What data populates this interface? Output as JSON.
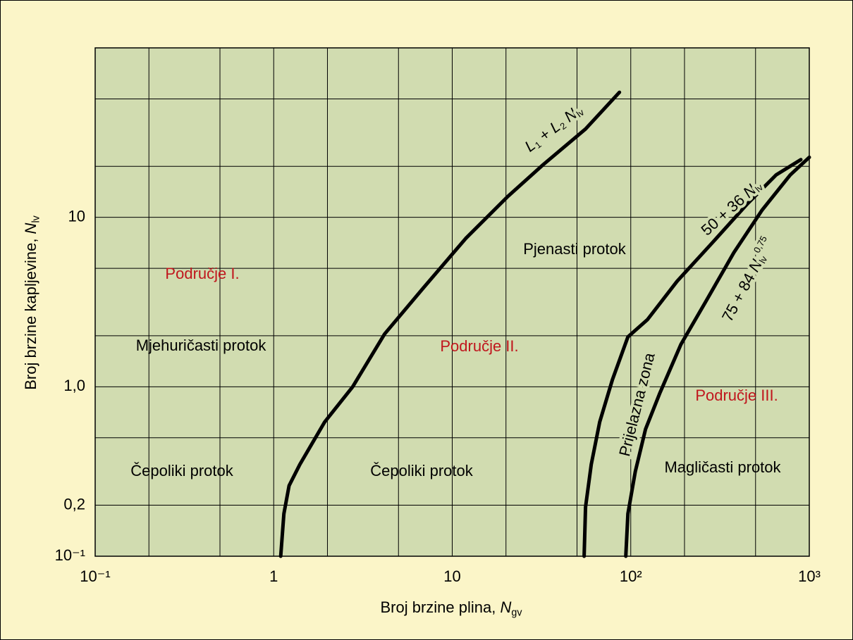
{
  "chart_data": {
    "type": "line",
    "xlabel": [
      {
        "text": "Broj brzine plina,  "
      },
      {
        "italic": "N"
      },
      {
        "sub": "gv"
      }
    ],
    "ylabel": [
      {
        "text": "Broj brzine kapljevine,  "
      },
      {
        "italic": "N"
      },
      {
        "sub": "lv"
      }
    ],
    "xscale": "log",
    "yscale": "log",
    "xlim": [
      0.1,
      1000
    ],
    "ylim": [
      0.1,
      100
    ],
    "xticks": [
      {
        "value": 0.1,
        "label": "10⁻¹"
      },
      1,
      10,
      {
        "value": 100,
        "label": "10²"
      },
      {
        "value": 1000,
        "label": "10³"
      }
    ],
    "yticks": [
      {
        "value": 0.1,
        "label": "10⁻¹"
      },
      {
        "value": 0.2,
        "label": "0,2"
      },
      {
        "value": 1,
        "label": "1,0"
      },
      10
    ],
    "minor_xticks": [
      0.2,
      0.5,
      2,
      5,
      20,
      50,
      200,
      500
    ],
    "minor_yticks": [
      0.5,
      2,
      5,
      20,
      50
    ],
    "grid": true,
    "series": [
      {
        "name": [
          {
            "italic": "L"
          },
          {
            "sub": "1"
          },
          {
            "text": " + "
          },
          {
            "italic": "L"
          },
          {
            "sub": "2"
          },
          {
            "text": " "
          },
          {
            "italic": "N"
          },
          {
            "sub": "lv"
          }
        ],
        "color": "#000000",
        "x": [
          1.095,
          1.14,
          1.22,
          1.4,
          1.93,
          2.77,
          4.18,
          6.89,
          11.9,
          20.5,
          32.4,
          55.8,
          86.4
        ],
        "y": [
          0.1,
          0.178,
          0.261,
          0.348,
          0.62,
          1.0,
          2.05,
          3.83,
          7.5,
          13.3,
          20.5,
          33.2,
          54.7
        ]
      },
      {
        "name": [
          {
            "text": "50 + 36 "
          },
          {
            "italic": "N"
          },
          {
            "sub": "lv"
          }
        ],
        "color": "#000000",
        "x": [
          54.8,
          55.8,
          60.1,
          67.0,
          78.9,
          96.4,
          124,
          182,
          287,
          453,
          652,
          897
        ],
        "y": [
          0.1,
          0.195,
          0.348,
          0.62,
          1.1,
          1.97,
          2.49,
          4.2,
          7.1,
          12.1,
          17.8,
          21.9
        ]
      },
      {
        "name": [
          {
            "text": "75 + 84 "
          },
          {
            "italic": "N"
          },
          {
            "sub": "lv"
          },
          {
            "sup": "0,75"
          }
        ],
        "color": "#000000",
        "x": [
          93.8,
          96.4,
          106,
          121,
          145,
          191,
          262,
          378,
          543,
          782,
          1000
        ],
        "y": [
          0.1,
          0.178,
          0.316,
          0.562,
          0.909,
          1.78,
          3.16,
          6.19,
          11,
          17.8,
          22.6
        ]
      }
    ],
    "annotations": [
      {
        "text": "Područje I.",
        "color": "#c0161d"
      },
      {
        "text": "Mjehuričasti protok",
        "color": "#000000"
      },
      {
        "text": "Čepoliki protok",
        "color": "#000000"
      },
      {
        "text": "Područje II.",
        "color": "#c0161d"
      },
      {
        "text": "Čepoliki protok",
        "color": "#000000"
      },
      {
        "text": "Pjenasti protok",
        "color": "#000000"
      },
      {
        "text": "Prijelazna zona",
        "color": "#000000"
      },
      {
        "text": "Područje III.",
        "color": "#c0161d"
      },
      {
        "text": "Magličasti protok",
        "color": "#000000"
      }
    ]
  }
}
